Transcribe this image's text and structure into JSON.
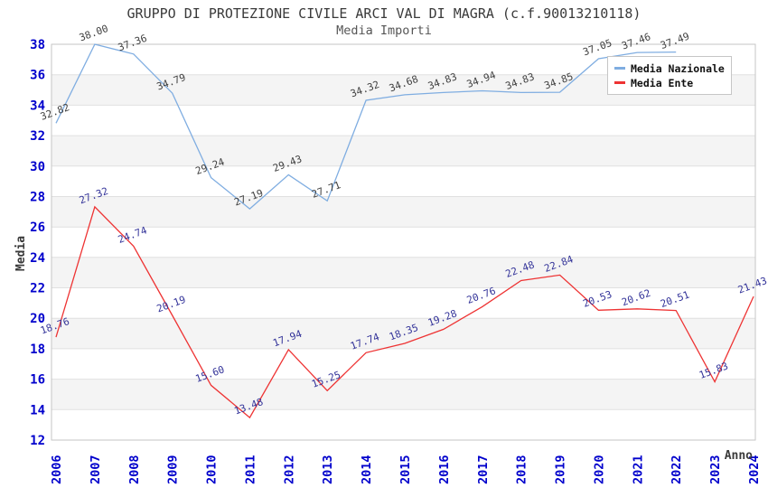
{
  "header": {
    "title": "GRUPPO DI PROTEZIONE CIVILE ARCI VAL DI MAGRA (c.f.90013210118)",
    "subtitle": "Media Importi"
  },
  "axes": {
    "y_title": "Media",
    "x_title": "Anno",
    "tick_label_color": "#0000cc"
  },
  "legend": {
    "items": [
      {
        "label": "Media Nazionale",
        "color": "#7fade1"
      },
      {
        "label": "Media Ente",
        "color": "#ee3333"
      }
    ]
  },
  "chart_data": {
    "type": "line",
    "title": "GRUPPO DI PROTEZIONE CIVILE ARCI VAL DI MAGRA (c.f.90013210118)",
    "subtitle": "Media Importi",
    "xlabel": "Anno",
    "ylabel": "Media",
    "x": [
      "2006",
      "2007",
      "2008",
      "2009",
      "2010",
      "2011",
      "2012",
      "2013",
      "2014",
      "2015",
      "2016",
      "2017",
      "2018",
      "2019",
      "2020",
      "2021",
      "2022",
      "2023",
      "2024"
    ],
    "ylim": [
      12,
      38
    ],
    "y_tick_step": 2,
    "grid": "horizontal-bands",
    "legend_position": "top-right",
    "series": [
      {
        "name": "Media Nazionale",
        "color": "#7fade1",
        "label_color": "#3f3f3f",
        "values": [
          32.82,
          38.0,
          37.36,
          34.79,
          29.24,
          27.19,
          29.43,
          27.71,
          34.32,
          34.68,
          34.83,
          34.94,
          34.83,
          34.85,
          37.05,
          37.46,
          37.49,
          null,
          null
        ]
      },
      {
        "name": "Media Ente",
        "color": "#ee3333",
        "label_color": "#333399",
        "values": [
          18.76,
          27.32,
          24.74,
          20.19,
          15.6,
          13.48,
          17.94,
          15.25,
          17.74,
          18.35,
          19.28,
          20.76,
          22.48,
          22.84,
          20.53,
          20.62,
          20.51,
          15.83,
          21.43
        ]
      }
    ]
  }
}
